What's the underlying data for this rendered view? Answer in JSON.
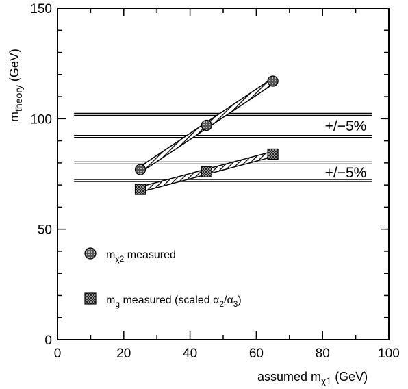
{
  "chart_data": {
    "type": "line",
    "xlabel": "assumed m",
    "xlabel_sub": "χ1",
    "xlabel_unit": "(GeV)",
    "ylabel": "m",
    "ylabel_sub": "theory",
    "ylabel_unit": "(GeV)",
    "xlim": [
      0,
      100
    ],
    "ylim": [
      0,
      150
    ],
    "x_ticks": [
      "0",
      "20",
      "40",
      "60",
      "80",
      "100"
    ],
    "y_ticks": [
      "0",
      "50",
      "100",
      "150"
    ],
    "x_tick_values": [
      0,
      20,
      40,
      60,
      80,
      100
    ],
    "y_tick_values": [
      0,
      50,
      100,
      150
    ],
    "grid": false,
    "bands": [
      {
        "label": "+/−5%",
        "lower": 92,
        "upper": 102,
        "xrange": [
          5,
          95
        ]
      },
      {
        "label": "+/−5%",
        "lower": 72,
        "upper": 80,
        "xrange": [
          5,
          95
        ]
      }
    ],
    "series": [
      {
        "name": "mχ2 measured",
        "marker": "circle",
        "x": [
          25,
          45,
          65
        ],
        "y": [
          77,
          97,
          117
        ]
      },
      {
        "name": "mg measured (scaled α2/α3)",
        "marker": "square",
        "x": [
          25,
          45,
          65
        ],
        "y": [
          68,
          76,
          84
        ]
      }
    ],
    "legend": [
      {
        "marker": "circle",
        "main": "m",
        "sub": "χ2",
        "rest": " measured"
      },
      {
        "marker": "square",
        "main": "m",
        "sub": "g",
        "rest": " measured (scaled α",
        "sub2": "2",
        "mid": "/α",
        "sub3": "3",
        "end": ")"
      }
    ],
    "legend_position": "lower-left"
  }
}
